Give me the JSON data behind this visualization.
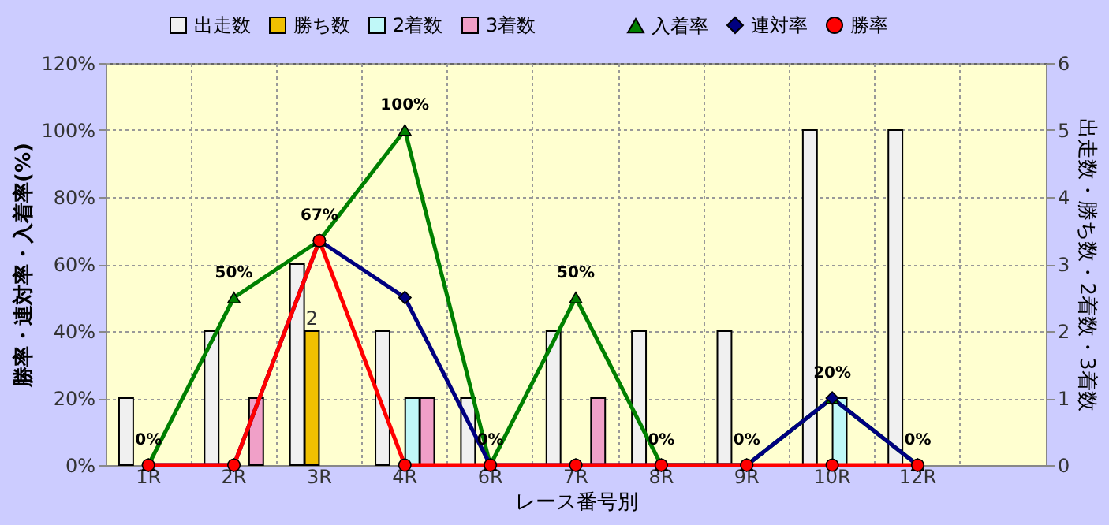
{
  "chart_data": {
    "type": "bar",
    "categories": [
      "1R",
      "2R",
      "3R",
      "4R",
      "6R",
      "7R",
      "8R",
      "9R",
      "10R",
      "12R",
      null
    ],
    "xlabel": "レース番号別",
    "ylabel": "勝率・連対率・入着率(%)",
    "y2label": "出走数・勝ち数・2着数・3着数",
    "ylim": [
      0,
      120
    ],
    "yticks": [
      {
        "value": 0,
        "label": "0%"
      },
      {
        "value": 20,
        "label": "20%"
      },
      {
        "value": 40,
        "label": "40%"
      },
      {
        "value": 60,
        "label": "60%"
      },
      {
        "value": 80,
        "label": "80%"
      },
      {
        "value": 100,
        "label": "100%"
      },
      {
        "value": 120,
        "label": "120%"
      }
    ],
    "y2lim": [
      0,
      6
    ],
    "y2ticks": [
      0,
      1,
      2,
      3,
      4,
      5,
      6
    ],
    "grid": true,
    "legend": "top",
    "series": [
      {
        "name": "出走数",
        "axis": "y2",
        "color": "#f0f0f0",
        "values": [
          1,
          2,
          3,
          2,
          1,
          2,
          2,
          2,
          5,
          5,
          null
        ]
      },
      {
        "name": "勝ち数",
        "axis": "y2",
        "color": "#f0c000",
        "values": [
          0,
          0,
          2,
          0,
          0,
          0,
          0,
          0,
          0,
          0,
          null
        ],
        "value_labels": [
          null,
          null,
          "2",
          null,
          null,
          null,
          null,
          null,
          null,
          null,
          null
        ]
      },
      {
        "name": "2着数",
        "axis": "y2",
        "color": "#c0f8f8",
        "values": [
          0,
          0,
          0,
          1,
          0,
          0,
          0,
          0,
          1,
          0,
          null
        ]
      },
      {
        "name": "3着数",
        "axis": "y2",
        "color": "#f0a0c8",
        "values": [
          0,
          1,
          0,
          1,
          0,
          1,
          0,
          0,
          0,
          0,
          null
        ]
      },
      {
        "name": "入着率",
        "type": "line",
        "marker": "triangle",
        "color": "#008000",
        "values": [
          0,
          50,
          67,
          100,
          0,
          50,
          0,
          0,
          20,
          0,
          null
        ],
        "value_labels": [
          "0%",
          "50%",
          "67%",
          "100%",
          "0%",
          "50%",
          "0%",
          "0%",
          "20%",
          "0%",
          null
        ]
      },
      {
        "name": "連対率",
        "type": "line",
        "marker": "diamond",
        "color": "#000080",
        "values": [
          0,
          0,
          67,
          50,
          0,
          0,
          0,
          0,
          20,
          0,
          null
        ]
      },
      {
        "name": "勝率",
        "type": "line",
        "marker": "circle",
        "color": "#ff0000",
        "values": [
          0,
          0,
          67,
          0,
          0,
          0,
          0,
          0,
          0,
          0,
          null
        ]
      }
    ]
  }
}
